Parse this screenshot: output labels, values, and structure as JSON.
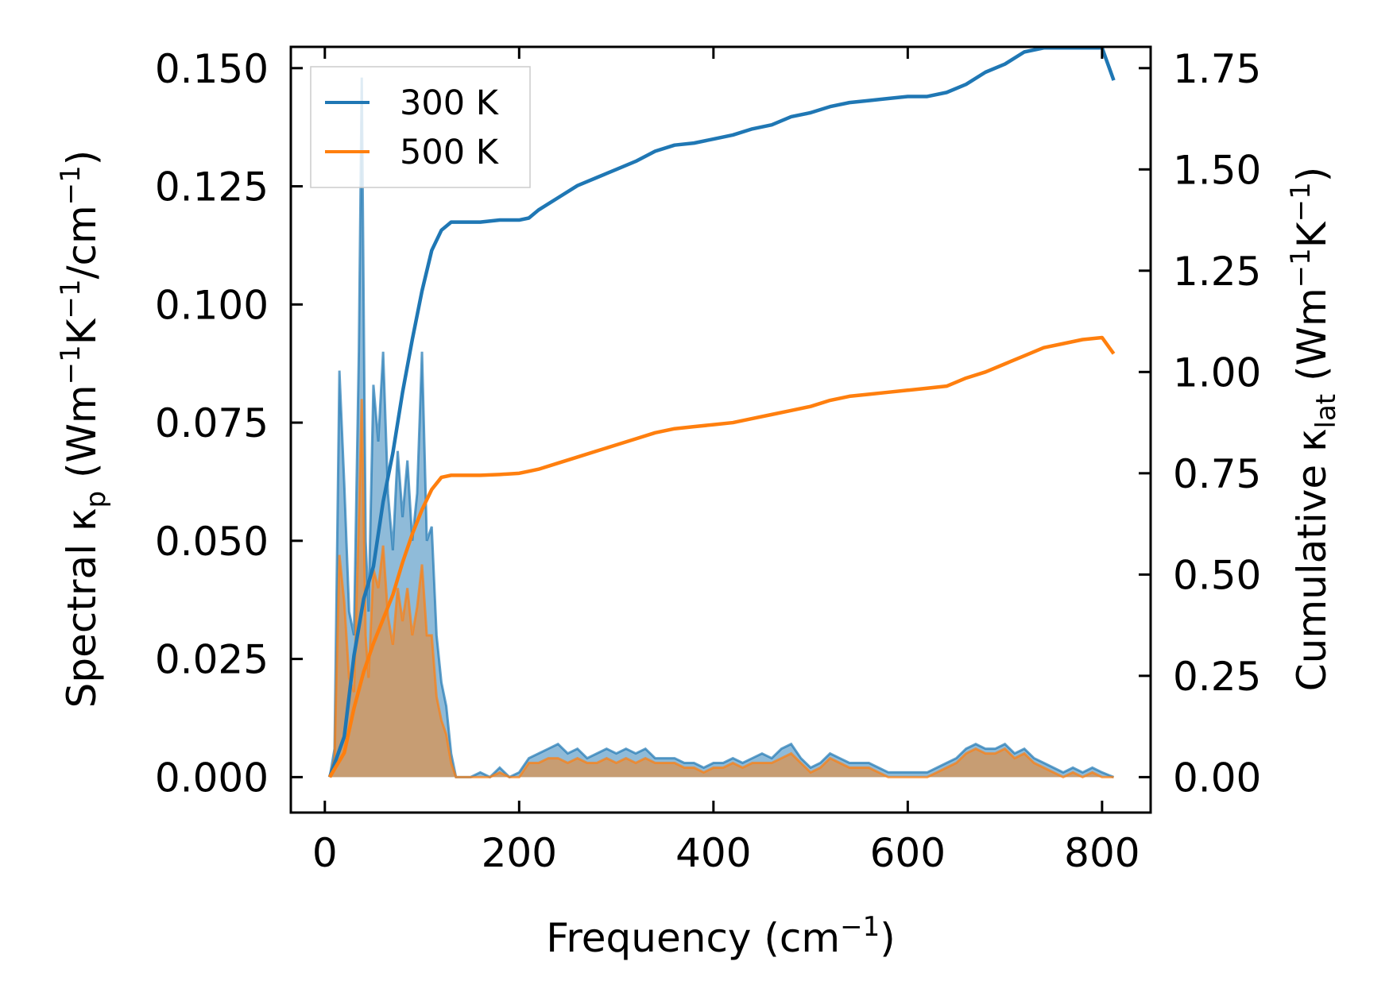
{
  "chart_data": {
    "type": "area+line",
    "title": "",
    "xlabel": "Frequency (cm",
    "xlabel_sup": "−1",
    "xlabel_end": ")",
    "ylabel_left": {
      "p1": "Spectral κ",
      "sub": "p",
      "p2": " (Wm",
      "s1": "−1",
      "p3": "K",
      "s2": "−1",
      "p4": "/cm",
      "s3": "−1",
      "p5": ")"
    },
    "ylabel_right": {
      "p1": "Cumulative κ",
      "sub": "lat",
      "p2": " (Wm",
      "s1": "−1",
      "p3": "K",
      "s2": "−1",
      "p4": ")"
    },
    "xlim": [
      -35,
      850
    ],
    "ylim_left": [
      -0.0075,
      0.1545
    ],
    "ylim_right": [
      -0.0875,
      1.8025
    ],
    "xticks": [
      0,
      200,
      400,
      600,
      800
    ],
    "xtick_labels": [
      "0",
      "200",
      "400",
      "600",
      "800"
    ],
    "yticks_left": [
      0.0,
      0.025,
      0.05,
      0.075,
      0.1,
      0.125,
      0.15
    ],
    "ytick_labels_left": [
      "0.000",
      "0.025",
      "0.050",
      "0.075",
      "0.100",
      "0.125",
      "0.150"
    ],
    "yticks_right": [
      0.0,
      0.25,
      0.5,
      0.75,
      1.0,
      1.25,
      1.5,
      1.75
    ],
    "ytick_labels_right": [
      "0.00",
      "0.25",
      "0.50",
      "0.75",
      "1.00",
      "1.25",
      "1.50",
      "1.75"
    ],
    "legend": {
      "location": "upper left",
      "entries": [
        "300 K",
        "500 K"
      ]
    },
    "series": [
      {
        "name": "300 K",
        "color": "#1f77b4",
        "spectral_x": [
          5,
          10,
          15,
          20,
          25,
          30,
          35,
          38,
          42,
          45,
          50,
          55,
          60,
          65,
          70,
          75,
          80,
          85,
          90,
          95,
          100,
          105,
          110,
          115,
          120,
          125,
          130,
          135,
          140,
          150,
          160,
          170,
          180,
          190,
          200,
          210,
          220,
          230,
          240,
          250,
          260,
          270,
          280,
          290,
          300,
          310,
          320,
          330,
          340,
          350,
          360,
          370,
          380,
          390,
          400,
          410,
          420,
          430,
          440,
          450,
          460,
          470,
          480,
          490,
          500,
          510,
          520,
          530,
          540,
          550,
          560,
          570,
          580,
          590,
          600,
          610,
          620,
          630,
          640,
          650,
          660,
          670,
          680,
          690,
          700,
          710,
          720,
          730,
          740,
          750,
          760,
          770,
          780,
          790,
          800,
          812
        ],
        "spectral_y": [
          0.0,
          0.006,
          0.086,
          0.062,
          0.035,
          0.03,
          0.09,
          0.148,
          0.05,
          0.035,
          0.083,
          0.071,
          0.09,
          0.06,
          0.048,
          0.069,
          0.055,
          0.067,
          0.05,
          0.06,
          0.09,
          0.05,
          0.053,
          0.03,
          0.02,
          0.015,
          0.005,
          0.0,
          0.0,
          0.0,
          0.001,
          0.0,
          0.002,
          0.0,
          0.001,
          0.004,
          0.005,
          0.006,
          0.007,
          0.005,
          0.006,
          0.004,
          0.005,
          0.006,
          0.005,
          0.006,
          0.005,
          0.006,
          0.004,
          0.004,
          0.004,
          0.003,
          0.003,
          0.002,
          0.003,
          0.003,
          0.004,
          0.003,
          0.004,
          0.005,
          0.004,
          0.006,
          0.007,
          0.004,
          0.002,
          0.003,
          0.005,
          0.004,
          0.003,
          0.003,
          0.003,
          0.002,
          0.001,
          0.001,
          0.001,
          0.001,
          0.001,
          0.002,
          0.003,
          0.004,
          0.006,
          0.007,
          0.006,
          0.006,
          0.007,
          0.005,
          0.006,
          0.004,
          0.003,
          0.002,
          0.001,
          0.002,
          0.001,
          0.002,
          0.001,
          0.0
        ],
        "cumulative_x": [
          5,
          20,
          30,
          40,
          50,
          60,
          70,
          80,
          90,
          100,
          110,
          120,
          130,
          140,
          160,
          180,
          200,
          210,
          220,
          240,
          260,
          280,
          300,
          320,
          340,
          360,
          380,
          400,
          420,
          440,
          460,
          480,
          500,
          520,
          540,
          560,
          580,
          600,
          620,
          640,
          660,
          680,
          700,
          720,
          740,
          760,
          780,
          800,
          812
        ],
        "cumulative_y": [
          0.0,
          0.1,
          0.3,
          0.44,
          0.52,
          0.68,
          0.8,
          0.95,
          1.08,
          1.2,
          1.3,
          1.35,
          1.37,
          1.37,
          1.37,
          1.375,
          1.375,
          1.38,
          1.4,
          1.43,
          1.46,
          1.48,
          1.5,
          1.52,
          1.545,
          1.56,
          1.565,
          1.575,
          1.585,
          1.6,
          1.61,
          1.63,
          1.64,
          1.655,
          1.665,
          1.67,
          1.675,
          1.68,
          1.68,
          1.69,
          1.71,
          1.74,
          1.76,
          1.79,
          1.8,
          1.8,
          1.8,
          1.8,
          1.72
        ]
      },
      {
        "name": "500 K",
        "color": "#ff7f0e",
        "spectral_x": [
          5,
          10,
          15,
          20,
          25,
          30,
          35,
          38,
          42,
          45,
          50,
          55,
          60,
          65,
          70,
          75,
          80,
          85,
          90,
          95,
          100,
          105,
          110,
          115,
          120,
          125,
          130,
          135,
          140,
          150,
          160,
          170,
          180,
          190,
          200,
          210,
          220,
          230,
          240,
          250,
          260,
          270,
          280,
          290,
          300,
          310,
          320,
          330,
          340,
          350,
          360,
          370,
          380,
          390,
          400,
          410,
          420,
          430,
          440,
          450,
          460,
          470,
          480,
          490,
          500,
          510,
          520,
          530,
          540,
          550,
          560,
          570,
          580,
          590,
          600,
          610,
          620,
          630,
          640,
          650,
          660,
          670,
          680,
          690,
          700,
          710,
          720,
          730,
          740,
          750,
          760,
          770,
          780,
          790,
          800,
          812
        ],
        "spectral_y": [
          0.0,
          0.004,
          0.047,
          0.037,
          0.021,
          0.018,
          0.055,
          0.08,
          0.03,
          0.021,
          0.044,
          0.04,
          0.049,
          0.034,
          0.028,
          0.04,
          0.033,
          0.04,
          0.03,
          0.036,
          0.045,
          0.03,
          0.03,
          0.017,
          0.012,
          0.009,
          0.003,
          0.0,
          0.0,
          0.0,
          0.0,
          0.0,
          0.001,
          0.0,
          0.0,
          0.003,
          0.003,
          0.004,
          0.004,
          0.003,
          0.004,
          0.003,
          0.003,
          0.004,
          0.003,
          0.004,
          0.003,
          0.004,
          0.003,
          0.003,
          0.003,
          0.002,
          0.002,
          0.001,
          0.002,
          0.002,
          0.003,
          0.002,
          0.003,
          0.003,
          0.003,
          0.004,
          0.005,
          0.003,
          0.001,
          0.002,
          0.004,
          0.003,
          0.002,
          0.002,
          0.002,
          0.001,
          0.0,
          0.0,
          0.0,
          0.0,
          0.0,
          0.001,
          0.002,
          0.003,
          0.005,
          0.006,
          0.005,
          0.005,
          0.006,
          0.004,
          0.005,
          0.003,
          0.002,
          0.001,
          0.0,
          0.001,
          0.0,
          0.001,
          0.0,
          0.0
        ],
        "cumulative_x": [
          5,
          20,
          30,
          40,
          50,
          60,
          70,
          80,
          90,
          100,
          110,
          120,
          130,
          140,
          160,
          180,
          200,
          210,
          220,
          240,
          260,
          280,
          300,
          320,
          340,
          360,
          380,
          400,
          420,
          440,
          460,
          480,
          500,
          520,
          540,
          560,
          580,
          600,
          620,
          640,
          660,
          680,
          700,
          720,
          740,
          760,
          780,
          800,
          812
        ],
        "cumulative_y": [
          0.0,
          0.06,
          0.17,
          0.26,
          0.33,
          0.39,
          0.45,
          0.53,
          0.6,
          0.66,
          0.71,
          0.74,
          0.745,
          0.745,
          0.745,
          0.747,
          0.75,
          0.755,
          0.76,
          0.775,
          0.79,
          0.805,
          0.82,
          0.835,
          0.85,
          0.86,
          0.865,
          0.87,
          0.875,
          0.885,
          0.895,
          0.905,
          0.915,
          0.93,
          0.94,
          0.945,
          0.95,
          0.955,
          0.96,
          0.965,
          0.985,
          1.0,
          1.02,
          1.04,
          1.06,
          1.07,
          1.08,
          1.085,
          1.045
        ]
      }
    ]
  }
}
